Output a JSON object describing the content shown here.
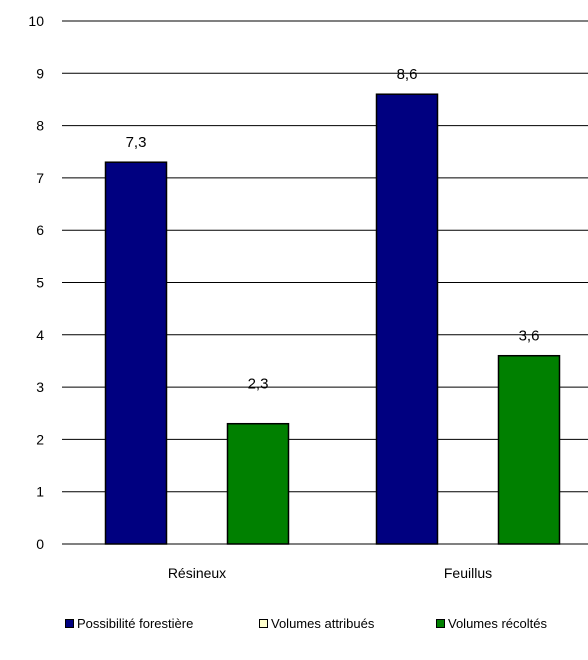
{
  "chart_data": {
    "type": "bar",
    "categories": [
      "Résineux",
      "Feuillus"
    ],
    "series": [
      {
        "name": "Possibilité forestière",
        "values": [
          7.3,
          8.6
        ],
        "labels": [
          "7,3",
          "8,6"
        ],
        "color": "#000080"
      },
      {
        "name": "Volumes attribués",
        "values": [
          null,
          null
        ],
        "labels": [
          "",
          ""
        ],
        "color": "#FFFFCC"
      },
      {
        "name": "Volumes récoltés",
        "values": [
          2.3,
          3.6
        ],
        "labels": [
          "2,3",
          "3,6"
        ],
        "color": "#008000"
      }
    ],
    "ylim": [
      0,
      10
    ],
    "yticks": [
      "0",
      "1",
      "2",
      "3",
      "4",
      "5",
      "6",
      "7",
      "8",
      "9",
      "10"
    ],
    "grid": true,
    "legend_position": "bottom",
    "title": "",
    "xlabel": "",
    "ylabel": ""
  }
}
